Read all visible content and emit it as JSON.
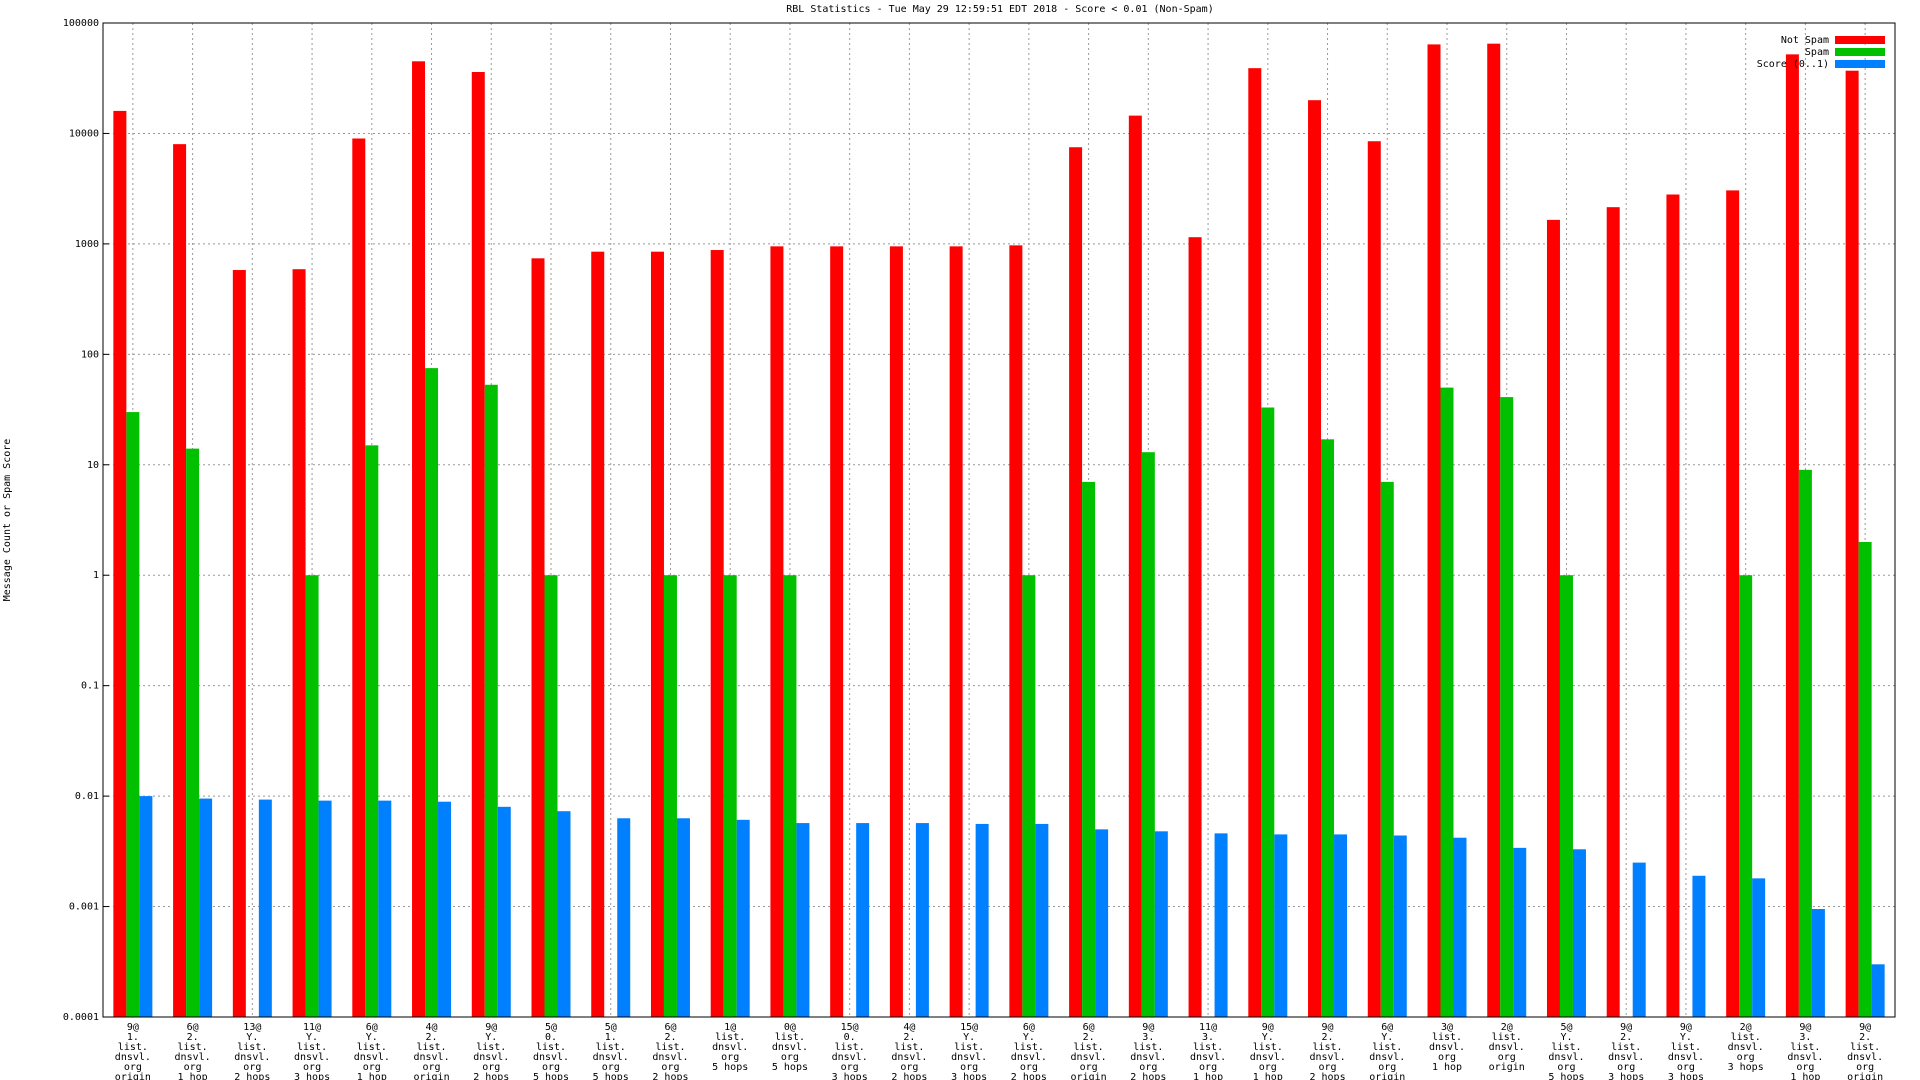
{
  "chart_data": {
    "type": "bar",
    "title": "RBL Statistics - Tue May 29 12:59:51 EDT 2018 - Score < 0.01 (Non-Spam)",
    "y_label": "Message Count or Spam Score",
    "log_y": true,
    "grid": true,
    "legend_position": "top-right",
    "categories": [
      [
        "9@",
        "1.",
        "list.",
        "dnsvl.",
        "org",
        "origin"
      ],
      [
        "6@",
        "2.",
        "list.",
        "dnsvl.",
        "org",
        "1 hop"
      ],
      [
        "13@",
        "Y.",
        "list.",
        "dnsvl.",
        "org",
        "2 hops"
      ],
      [
        "11@",
        "Y.",
        "list.",
        "dnsvl.",
        "org",
        "3 hops"
      ],
      [
        "6@",
        "Y.",
        "list.",
        "dnsvl.",
        "org",
        "1 hop"
      ],
      [
        "4@",
        "2.",
        "list.",
        "dnsvl.",
        "org",
        "origin"
      ],
      [
        "9@",
        "Y.",
        "list.",
        "dnsvl.",
        "org",
        "2 hops"
      ],
      [
        "5@",
        "0.",
        "list.",
        "dnsvl.",
        "org",
        "5 hops"
      ],
      [
        "5@",
        "1.",
        "list.",
        "dnsvl.",
        "org",
        "5 hops"
      ],
      [
        "6@",
        "2.",
        "list.",
        "dnsvl.",
        "org",
        "2 hops"
      ],
      [
        "1@",
        "list.",
        "dnsvl.",
        "org",
        "5 hops"
      ],
      [
        "0@",
        "list.",
        "dnsvl.",
        "org",
        "5 hops"
      ],
      [
        "15@",
        "0.",
        "list.",
        "dnsvl.",
        "org",
        "3 hops"
      ],
      [
        "4@",
        "2.",
        "list.",
        "dnsvl.",
        "org",
        "2 hops"
      ],
      [
        "15@",
        "Y.",
        "list.",
        "dnsvl.",
        "org",
        "3 hops"
      ],
      [
        "6@",
        "Y.",
        "list.",
        "dnsvl.",
        "org",
        "2 hops"
      ],
      [
        "6@",
        "2.",
        "list.",
        "dnsvl.",
        "org",
        "origin"
      ],
      [
        "9@",
        "3.",
        "list.",
        "dnsvl.",
        "org",
        "2 hops"
      ],
      [
        "11@",
        "3.",
        "list.",
        "dnsvl.",
        "org",
        "1 hop"
      ],
      [
        "9@",
        "Y.",
        "list.",
        "dnsvl.",
        "org",
        "1 hop"
      ],
      [
        "9@",
        "2.",
        "list.",
        "dnsvl.",
        "org",
        "2 hops"
      ],
      [
        "6@",
        "Y.",
        "list.",
        "dnsvl.",
        "org",
        "origin"
      ],
      [
        "3@",
        "list.",
        "dnsvl.",
        "org",
        "1 hop"
      ],
      [
        "2@",
        "list.",
        "dnsvl.",
        "org",
        "origin"
      ],
      [
        "5@",
        "Y.",
        "list.",
        "dnsvl.",
        "org",
        "5 hops"
      ],
      [
        "9@",
        "2.",
        "list.",
        "dnsvl.",
        "org",
        "3 hops"
      ],
      [
        "9@",
        "Y.",
        "list.",
        "dnsvl.",
        "org",
        "3 hops"
      ],
      [
        "2@",
        "list.",
        "dnsvl.",
        "org",
        "3 hops"
      ],
      [
        "9@",
        "3.",
        "list.",
        "dnsvl.",
        "org",
        "1 hop"
      ],
      [
        "9@",
        "2.",
        "list.",
        "dnsvl.",
        "org",
        "origin"
      ]
    ],
    "series": [
      {
        "name": "Not Spam",
        "color": "#ff0000",
        "values": [
          16000,
          8000,
          580,
          590,
          9000,
          45000,
          36000,
          740,
          850,
          850,
          880,
          950,
          950,
          950,
          950,
          970,
          7500,
          14500,
          1150,
          39000,
          20000,
          8500,
          64000,
          65000,
          1650,
          2150,
          2800,
          3050,
          52000,
          37000
        ]
      },
      {
        "name": "Spam",
        "color": "#00c000",
        "values": [
          30,
          14,
          null,
          1,
          15,
          75,
          53,
          1,
          null,
          1,
          1,
          1,
          null,
          null,
          null,
          1,
          7,
          13,
          null,
          33,
          17,
          7,
          50,
          41,
          1,
          null,
          null,
          1,
          9,
          2
        ]
      },
      {
        "name": "Score (0..1)",
        "color": "#0080ff",
        "values": [
          0.01,
          0.0095,
          0.0093,
          0.0091,
          0.0091,
          0.0089,
          0.008,
          0.0073,
          0.0063,
          0.0063,
          0.0061,
          0.0057,
          0.0057,
          0.0057,
          0.0056,
          0.0056,
          0.005,
          0.0048,
          0.0046,
          0.0045,
          0.0045,
          0.0044,
          0.0042,
          0.0034,
          0.0033,
          0.0025,
          0.0019,
          0.0018,
          0.00095,
          0.0003
        ]
      }
    ],
    "ylim": [
      0.0001,
      100000
    ],
    "yticks": [
      0.0001,
      0.001,
      0.01,
      0.1,
      1,
      10,
      100,
      1000,
      10000,
      100000
    ]
  }
}
